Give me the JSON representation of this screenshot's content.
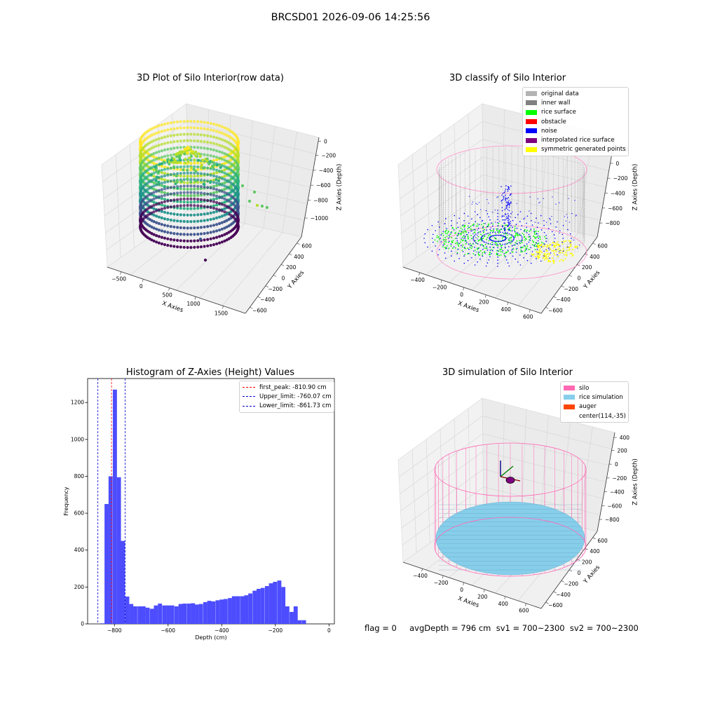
{
  "suptitle": "BRCSD01 2026-09-06 14:25:56",
  "footer": "flag = 0     avgDepth = 796 cm  sv1 = 700~2300  sv2 = 700~2300",
  "chart_data": [
    {
      "type": "scatter",
      "subtype": "3d-scatter",
      "title": "3D Plot of Silo Interior(row data)",
      "xlabel": "X Axies",
      "ylabel": "Y Axies",
      "zlabel": "Z Axies (Depth)",
      "x_ticks": [
        "−500",
        "0",
        "500",
        "1000",
        "1500"
      ],
      "y_ticks": [
        "−600",
        "−400",
        "−200",
        "0",
        "200",
        "400",
        "600"
      ],
      "z_ticks": [
        "0",
        "−200",
        "−400",
        "−600",
        "−800",
        "−1000"
      ],
      "xlim": [
        -600,
        1800
      ],
      "ylim": [
        -700,
        700
      ],
      "zlim": [
        -1100,
        50
      ],
      "colormap": "viridis",
      "grid": true
    },
    {
      "type": "scatter",
      "subtype": "3d-scatter",
      "title": "3D classify of Silo Interior",
      "xlabel": "X Axies",
      "ylabel": "Y Axies",
      "zlabel": "Z Axies (Depth)",
      "x_ticks": [
        "−400",
        "−200",
        "0",
        "200",
        "400",
        "600"
      ],
      "y_ticks": [
        "−600",
        "−400",
        "−200",
        "0",
        "200",
        "400",
        "600"
      ],
      "z_ticks": [
        "200",
        "0",
        "−200",
        "−400",
        "−600",
        "−800"
      ],
      "z_partial_top_tick": "00",
      "xlim": [
        -450,
        700
      ],
      "ylim": [
        -650,
        650
      ],
      "zlim": [
        -900,
        300
      ],
      "legend_position": "top-right",
      "series": [
        {
          "name": "original data",
          "color": "#b3b3b3"
        },
        {
          "name": "inner wall",
          "color": "#808080"
        },
        {
          "name": "rice surface",
          "color": "#00ff00"
        },
        {
          "name": "obstacle",
          "color": "#ff0000"
        },
        {
          "name": "noise",
          "color": "#0000ff"
        },
        {
          "name": "interpolated rice surface",
          "color": "#800080"
        },
        {
          "name": "symmetric generated points",
          "color": "#ffff00"
        }
      ],
      "grid": true
    },
    {
      "type": "bar",
      "subtype": "histogram",
      "title": "Histogram of Z-Axies (Height) Values",
      "xlabel": "Depth (cm)",
      "ylabel": "Frequency",
      "xlim": [
        -900,
        20
      ],
      "ylim": [
        0,
        1330
      ],
      "x_ticks": [
        -800,
        -600,
        -400,
        -200,
        0
      ],
      "y_ticks": [
        0,
        200,
        400,
        600,
        800,
        1000,
        1200
      ],
      "bin_width": 15.3,
      "bins_start": [
        -852,
        -837,
        -822,
        -806,
        -791,
        -776,
        -760,
        -745,
        -730,
        -714,
        -699,
        -684,
        -668,
        -653,
        -638,
        -622,
        -607,
        -592,
        -576,
        -561,
        -546,
        -530,
        -515,
        -500,
        -485,
        -469,
        -454,
        -439,
        -423,
        -408,
        -393,
        -377,
        -362,
        -347,
        -331,
        -316,
        -301,
        -285,
        -270,
        -255,
        -239,
        -224,
        -209,
        -193,
        -178,
        -163,
        -147,
        -132,
        -117,
        -101,
        -86,
        -71,
        -55,
        -40,
        -25
      ],
      "values": [
        3,
        650,
        800,
        1270,
        795,
        450,
        148,
        108,
        95,
        95,
        95,
        88,
        82,
        100,
        110,
        100,
        100,
        100,
        95,
        108,
        110,
        110,
        112,
        105,
        108,
        118,
        125,
        122,
        128,
        132,
        135,
        140,
        150,
        150,
        150,
        155,
        165,
        180,
        190,
        195,
        205,
        220,
        228,
        235,
        200,
        95,
        65,
        95,
        20,
        20,
        0,
        0,
        0,
        0,
        0
      ],
      "bar_color": "#4d4dff",
      "vlines": [
        {
          "label": "first_peak: -810.90 cm",
          "x": -810.9,
          "color": "#ff0000"
        },
        {
          "label": "Upper_limit: -760.07 cm",
          "x": -760.07,
          "color": "#0000cc"
        },
        {
          "label": "Lower_limit: -861.73 cm",
          "x": -861.73,
          "color": "#0000cc"
        }
      ],
      "legend_position": "top-right",
      "grid": false
    },
    {
      "type": "scatter",
      "subtype": "3d-surface",
      "title": "3D simulation of Silo Interior",
      "xlabel": "X Axies",
      "ylabel": "Y Axies",
      "zlabel": "Z Axies (Depth)",
      "x_ticks": [
        "−400",
        "−200",
        "0",
        "200",
        "400",
        "600"
      ],
      "y_ticks": [
        "−600",
        "−400",
        "−200",
        "0",
        "200",
        "400",
        "600"
      ],
      "z_ticks": [
        "400",
        "200",
        "0",
        "−200",
        "−400",
        "−600",
        "−800"
      ],
      "xlim": [
        -500,
        700
      ],
      "ylim": [
        -650,
        650
      ],
      "zlim": [
        -900,
        450
      ],
      "legend_position": "top-right",
      "series": [
        {
          "name": "silo",
          "color": "#ff69b4"
        },
        {
          "name": "rice simulation",
          "color": "#87ceeb"
        },
        {
          "name": "auger",
          "color": "#ff4500"
        },
        {
          "name": "center(114,-35)",
          "color": ""
        }
      ],
      "grid": true
    }
  ]
}
